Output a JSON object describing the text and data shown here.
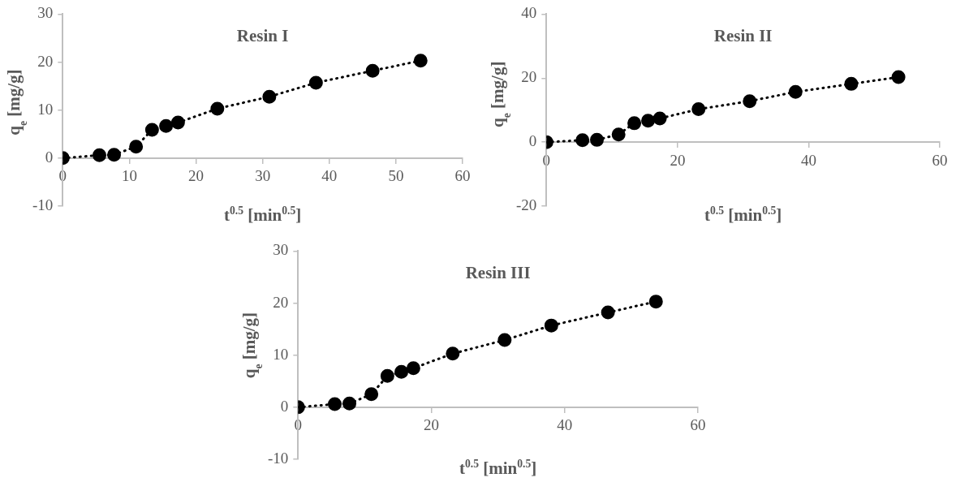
{
  "chart_data": [
    {
      "type": "line",
      "title": "Resin I",
      "xlabel": "t$^{0.5}$ [min$^{0.5}$]",
      "ylabel": "q$_{e}$ [mg/g]",
      "marker": "circle",
      "line_style": "dotted",
      "grid": false,
      "legend": false,
      "series": [
        {
          "color": "#000000",
          "x": [
            0,
            5.5,
            7.7,
            11,
            13.4,
            15.5,
            17.3,
            23.2,
            31,
            38,
            46.5,
            53.7
          ],
          "values": [
            0,
            0.6,
            0.7,
            2.4,
            5.9,
            6.7,
            7.4,
            10.3,
            12.8,
            15.7,
            18.2,
            20.3
          ]
        }
      ],
      "xlim": [
        0,
        60
      ],
      "xticks": [
        0,
        10,
        20,
        30,
        40,
        50,
        60
      ],
      "ylim": [
        -10,
        30
      ],
      "yticks": [
        -10,
        0,
        10,
        20,
        30
      ]
    },
    {
      "type": "line",
      "title": "Resin II",
      "xlabel": "t$^{0.5}$ [min$^{0.5}$]",
      "ylabel": "q$_{e}$ [mg/g]",
      "marker": "circle",
      "line_style": "dotted",
      "grid": false,
      "legend": false,
      "series": [
        {
          "color": "#000000",
          "x": [
            0,
            5.5,
            7.7,
            11,
            13.4,
            15.5,
            17.3,
            23.2,
            31,
            38,
            46.5,
            53.7
          ],
          "values": [
            0,
            0.6,
            0.7,
            2.4,
            5.9,
            6.7,
            7.4,
            10.3,
            12.8,
            15.7,
            18.2,
            20.3
          ]
        }
      ],
      "xlim": [
        0,
        60
      ],
      "xticks": [
        0,
        20,
        40,
        60
      ],
      "ylim": [
        -20,
        40
      ],
      "yticks": [
        -20,
        0,
        20,
        40
      ]
    },
    {
      "type": "line",
      "title": "Resin III",
      "xlabel": "t$^{0.5}$ [min$^{0.5}$]",
      "ylabel": "q$_{e}$ [mg/g]",
      "marker": "circle",
      "line_style": "dotted",
      "grid": false,
      "legend": false,
      "series": [
        {
          "color": "#000000",
          "x": [
            0,
            5.5,
            7.7,
            11,
            13.4,
            15.5,
            17.3,
            23.2,
            31,
            38,
            46.5,
            53.7
          ],
          "values": [
            0,
            0.6,
            0.7,
            2.5,
            6.0,
            6.8,
            7.5,
            10.3,
            12.9,
            15.7,
            18.2,
            20.3
          ]
        }
      ],
      "xlim": [
        0,
        60
      ],
      "xticks": [
        0,
        20,
        40,
        60
      ],
      "ylim": [
        -10,
        30
      ],
      "yticks": [
        -10,
        0,
        10,
        20,
        30
      ]
    }
  ]
}
